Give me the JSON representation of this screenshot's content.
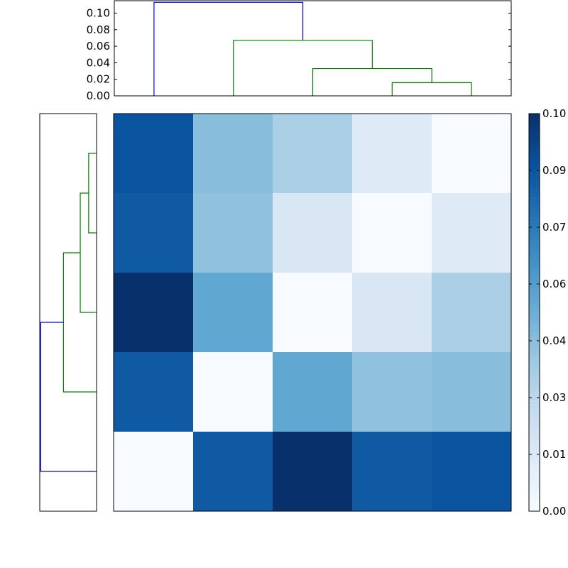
{
  "chart_data": [
    {
      "type": "dendrogram",
      "orientation": "top",
      "ylim": [
        0,
        0.115
      ],
      "yticks": [
        "0.00",
        "0.02",
        "0.04",
        "0.06",
        "0.08",
        "0.10"
      ],
      "leaf_count": 5,
      "links": [
        {
          "x": [
            3,
            3,
            4,
            4
          ],
          "y": [
            0,
            0.016,
            0.016,
            0
          ],
          "color": "#008000"
        },
        {
          "x": [
            2,
            2,
            3.5,
            3.5
          ],
          "y": [
            0,
            0.033,
            0.033,
            0.016
          ],
          "color": "#008000"
        },
        {
          "x": [
            1,
            1,
            2.75,
            2.75
          ],
          "y": [
            0,
            0.067,
            0.067,
            0.033
          ],
          "color": "#008000"
        },
        {
          "x": [
            0,
            0,
            1.875,
            1.875
          ],
          "y": [
            0,
            0.113,
            0.113,
            0.067
          ],
          "color": "#0000ff"
        }
      ]
    },
    {
      "type": "dendrogram",
      "orientation": "left",
      "xlim": [
        0,
        0.115
      ],
      "leaf_count": 5,
      "links": [
        {
          "y": [
            3,
            3,
            4,
            4
          ],
          "x": [
            0,
            0.016,
            0.016,
            0
          ],
          "color": "#008000"
        },
        {
          "y": [
            2,
            2,
            3.5,
            3.5
          ],
          "x": [
            0,
            0.033,
            0.033,
            0.016
          ],
          "color": "#008000"
        },
        {
          "y": [
            1,
            1,
            2.75,
            2.75
          ],
          "x": [
            0,
            0.067,
            0.067,
            0.033
          ],
          "color": "#008000"
        },
        {
          "y": [
            0,
            0,
            1.875,
            1.875
          ],
          "x": [
            0,
            0.113,
            0.113,
            0.067
          ],
          "color": "#0000ff"
        }
      ]
    },
    {
      "type": "heatmap",
      "colormap": "Blues",
      "vmin": 0,
      "vmax": 0.105,
      "rows": 5,
      "cols": 5,
      "values": [
        [
          0.091,
          0.045,
          0.035,
          0.013,
          0.0
        ],
        [
          0.088,
          0.043,
          0.016,
          0.0,
          0.013
        ],
        [
          0.105,
          0.056,
          0.0,
          0.016,
          0.035
        ],
        [
          0.088,
          0.0,
          0.056,
          0.043,
          0.045
        ],
        [
          0.0,
          0.088,
          0.105,
          0.088,
          0.091
        ]
      ],
      "colorbar_ticks": [
        "0.00",
        "0.01",
        "0.03",
        "0.04",
        "0.06",
        "0.07",
        "0.09",
        "0.10"
      ],
      "colorbar_tick_values": [
        0.0,
        0.015,
        0.03,
        0.045,
        0.06,
        0.075,
        0.09,
        0.105
      ]
    }
  ]
}
